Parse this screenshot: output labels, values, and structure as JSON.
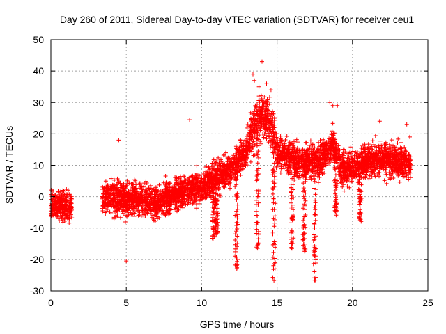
{
  "chart_data": {
    "type": "scatter",
    "title": "Day 260 of 2011, Sidereal Day-to-day VTEC variation (SDTVAR) for receiver ceu1",
    "xlabel": "GPS time / hours",
    "ylabel": "SDTVAR / TECUs",
    "xlim": [
      0,
      25
    ],
    "ylim": [
      -30,
      50
    ],
    "xticks": [
      0,
      5,
      10,
      15,
      20,
      25
    ],
    "yticks": [
      -30,
      -20,
      -10,
      0,
      10,
      20,
      30,
      40,
      50
    ],
    "grid": true,
    "marker": "+",
    "colors": {
      "points": "#ff0000",
      "grid": "#a0a0a0",
      "axes": "#000000"
    },
    "trend": {
      "x": [
        0,
        1.3,
        3.4,
        4,
        5,
        6,
        7,
        8,
        9,
        10,
        11,
        12,
        13,
        13.5,
        14,
        14.5,
        15,
        15.5,
        16,
        17,
        18,
        18.7,
        19.3,
        20,
        21,
        22,
        23,
        23.9
      ],
      "y": [
        -3,
        -3,
        -1,
        0,
        -1,
        -1,
        -2,
        0,
        2,
        3,
        6,
        9,
        15,
        22,
        26,
        24,
        14,
        13,
        12,
        11,
        12,
        17,
        8,
        9,
        11,
        12,
        11,
        10
      ]
    },
    "gaps": [
      [
        1.4,
        3.4
      ]
    ],
    "spread": 3.5,
    "outliers": [
      [
        14.0,
        43
      ],
      [
        13.4,
        39
      ],
      [
        13.5,
        37
      ],
      [
        13.8,
        35
      ],
      [
        14.6,
        34
      ],
      [
        14.3,
        36
      ],
      [
        9.2,
        24.5
      ],
      [
        4.5,
        18
      ],
      [
        5.0,
        -20.5
      ],
      [
        18.5,
        30
      ],
      [
        18.7,
        29
      ],
      [
        19.0,
        29
      ],
      [
        21.8,
        24
      ],
      [
        23.6,
        23
      ],
      [
        23.8,
        19
      ]
    ],
    "dips": [
      {
        "x": 10.8,
        "min": -14
      },
      {
        "x": 11.0,
        "min": -12
      },
      {
        "x": 12.3,
        "min": -23
      },
      {
        "x": 13.7,
        "min": -18
      },
      {
        "x": 14.8,
        "min": -27
      },
      {
        "x": 16.0,
        "min": -17
      },
      {
        "x": 16.8,
        "min": -18
      },
      {
        "x": 17.5,
        "min": -27
      },
      {
        "x": 18.9,
        "min": -6
      },
      {
        "x": 20.5,
        "min": -8
      }
    ],
    "seed": 260
  }
}
